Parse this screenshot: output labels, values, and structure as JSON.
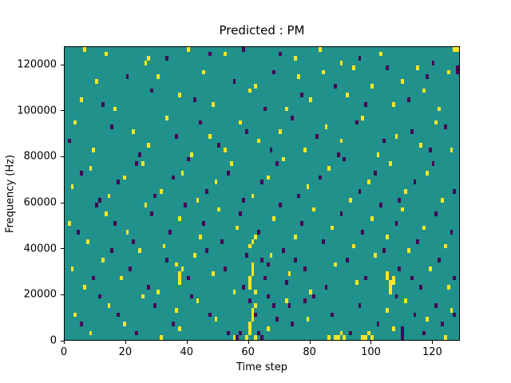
{
  "chart_data": {
    "type": "heatmap",
    "title": "Predicted : PM",
    "xlabel": "Time step",
    "ylabel": "Frequency (Hz)",
    "xlim": [
      0,
      129
    ],
    "ylim": [
      0,
      128000
    ],
    "n_time_steps": 129,
    "n_freq_bins": 64,
    "freq_bin_size_hz": 2000,
    "grid": false,
    "x_ticks": [
      0,
      20,
      40,
      60,
      80,
      100,
      120
    ],
    "y_ticks": [
      0,
      20000,
      40000,
      60000,
      80000,
      100000,
      120000
    ],
    "colors": {
      "background": "#21918c",
      "min": "#440154",
      "max": "#fde725"
    },
    "cell_format": "[time_step, freq_bin]",
    "cells_max": [
      [
        6,
        63
      ],
      [
        13,
        62
      ],
      [
        26,
        60
      ],
      [
        27,
        61
      ],
      [
        40,
        63
      ],
      [
        52,
        62
      ],
      [
        75,
        61
      ],
      [
        83,
        63
      ],
      [
        90,
        60
      ],
      [
        103,
        62
      ],
      [
        115,
        59
      ],
      [
        127,
        63
      ],
      [
        128,
        63
      ],
      [
        10,
        56
      ],
      [
        30,
        57
      ],
      [
        45,
        58
      ],
      [
        62,
        55
      ],
      [
        76,
        57
      ],
      [
        84,
        58
      ],
      [
        100,
        55
      ],
      [
        110,
        56
      ],
      [
        125,
        58
      ],
      [
        94,
        59
      ],
      [
        5,
        52
      ],
      [
        16,
        50
      ],
      [
        37,
        53
      ],
      [
        48,
        51
      ],
      [
        60,
        54
      ],
      [
        72,
        50
      ],
      [
        80,
        52
      ],
      [
        92,
        53
      ],
      [
        107,
        51
      ],
      [
        117,
        54
      ],
      [
        122,
        50
      ],
      [
        3,
        47
      ],
      [
        9,
        41
      ],
      [
        22,
        45
      ],
      [
        27,
        42
      ],
      [
        33,
        48
      ],
      [
        41,
        40
      ],
      [
        47,
        44
      ],
      [
        52,
        41
      ],
      [
        57,
        47
      ],
      [
        63,
        43
      ],
      [
        70,
        45
      ],
      [
        78,
        41
      ],
      [
        85,
        46
      ],
      [
        90,
        43
      ],
      [
        97,
        48
      ],
      [
        102,
        40
      ],
      [
        108,
        44
      ],
      [
        116,
        42
      ],
      [
        121,
        47
      ],
      [
        126,
        41
      ],
      [
        2,
        33
      ],
      [
        8,
        37
      ],
      [
        14,
        31
      ],
      [
        19,
        35
      ],
      [
        25,
        38
      ],
      [
        31,
        32
      ],
      [
        38,
        36
      ],
      [
        43,
        30
      ],
      [
        49,
        34
      ],
      [
        54,
        38
      ],
      [
        61,
        31
      ],
      [
        66,
        35
      ],
      [
        71,
        39
      ],
      [
        79,
        33
      ],
      [
        86,
        37
      ],
      [
        93,
        30
      ],
      [
        99,
        34
      ],
      [
        106,
        38
      ],
      [
        111,
        32
      ],
      [
        118,
        36
      ],
      [
        123,
        30
      ],
      [
        1,
        25
      ],
      [
        7,
        21
      ],
      [
        13,
        27
      ],
      [
        20,
        23
      ],
      [
        26,
        29
      ],
      [
        32,
        20
      ],
      [
        37,
        26
      ],
      [
        44,
        22
      ],
      [
        50,
        28
      ],
      [
        56,
        24
      ],
      [
        60,
        20
      ],
      [
        61,
        21
      ],
      [
        62,
        22
      ],
      [
        68,
        26
      ],
      [
        75,
        22
      ],
      [
        81,
        28
      ],
      [
        87,
        24
      ],
      [
        94,
        20
      ],
      [
        100,
        26
      ],
      [
        105,
        22
      ],
      [
        110,
        28
      ],
      [
        117,
        24
      ],
      [
        124,
        20
      ],
      [
        2,
        15
      ],
      [
        6,
        11
      ],
      [
        12,
        17
      ],
      [
        18,
        13
      ],
      [
        24,
        19
      ],
      [
        30,
        10
      ],
      [
        36,
        16
      ],
      [
        37,
        12
      ],
      [
        37,
        13
      ],
      [
        37,
        14
      ],
      [
        38,
        15
      ],
      [
        42,
        18
      ],
      [
        48,
        14
      ],
      [
        55,
        10
      ],
      [
        60,
        11
      ],
      [
        60,
        12
      ],
      [
        60,
        13
      ],
      [
        61,
        14
      ],
      [
        61,
        15
      ],
      [
        61,
        16
      ],
      [
        62,
        10
      ],
      [
        67,
        18
      ],
      [
        73,
        14
      ],
      [
        80,
        10
      ],
      [
        88,
        16
      ],
      [
        95,
        12
      ],
      [
        101,
        18
      ],
      [
        105,
        13
      ],
      [
        105,
        14
      ],
      [
        106,
        10
      ],
      [
        106,
        11
      ],
      [
        106,
        12
      ],
      [
        107,
        12
      ],
      [
        107,
        13
      ],
      [
        112,
        19
      ],
      [
        119,
        15
      ],
      [
        125,
        11
      ],
      [
        3,
        5
      ],
      [
        8,
        1
      ],
      [
        14,
        7
      ],
      [
        19,
        3
      ],
      [
        25,
        9
      ],
      [
        31,
        0
      ],
      [
        36,
        6
      ],
      [
        37,
        2
      ],
      [
        43,
        8
      ],
      [
        49,
        4
      ],
      [
        55,
        0
      ],
      [
        59,
        0
      ],
      [
        60,
        1
      ],
      [
        60,
        2
      ],
      [
        60,
        3
      ],
      [
        61,
        4
      ],
      [
        61,
        5
      ],
      [
        61,
        6
      ],
      [
        62,
        0
      ],
      [
        62,
        7
      ],
      [
        66,
        2
      ],
      [
        72,
        8
      ],
      [
        79,
        4
      ],
      [
        86,
        0
      ],
      [
        88,
        0
      ],
      [
        89,
        0
      ],
      [
        90,
        1
      ],
      [
        91,
        0
      ],
      [
        97,
        0
      ],
      [
        98,
        0
      ],
      [
        99,
        1
      ],
      [
        100,
        0
      ],
      [
        105,
        6
      ],
      [
        107,
        2
      ],
      [
        111,
        8
      ],
      [
        118,
        4
      ],
      [
        124,
        0
      ],
      [
        126,
        6
      ]
    ],
    "cells_min": [
      [
        33,
        61
      ],
      [
        47,
        62
      ],
      [
        58,
        63
      ],
      [
        70,
        62
      ],
      [
        96,
        61
      ],
      [
        120,
        60
      ],
      [
        128,
        59
      ],
      [
        128,
        58
      ],
      [
        20,
        57
      ],
      [
        55,
        56
      ],
      [
        68,
        58
      ],
      [
        88,
        55
      ],
      [
        105,
        59
      ],
      [
        118,
        57
      ],
      [
        12,
        51
      ],
      [
        28,
        54
      ],
      [
        42,
        52
      ],
      [
        65,
        50
      ],
      [
        77,
        53
      ],
      [
        98,
        51
      ],
      [
        112,
        52
      ],
      [
        1,
        43
      ],
      [
        15,
        46
      ],
      [
        24,
        40
      ],
      [
        36,
        44
      ],
      [
        44,
        47
      ],
      [
        50,
        42
      ],
      [
        59,
        45
      ],
      [
        67,
        41
      ],
      [
        74,
        48
      ],
      [
        82,
        44
      ],
      [
        89,
        40
      ],
      [
        95,
        47
      ],
      [
        104,
        43
      ],
      [
        113,
        45
      ],
      [
        119,
        41
      ],
      [
        124,
        46
      ],
      [
        5,
        36
      ],
      [
        11,
        30
      ],
      [
        17,
        34
      ],
      [
        23,
        38
      ],
      [
        29,
        31
      ],
      [
        35,
        35
      ],
      [
        40,
        39
      ],
      [
        46,
        32
      ],
      [
        53,
        36
      ],
      [
        58,
        30
      ],
      [
        64,
        34
      ],
      [
        69,
        38
      ],
      [
        76,
        31
      ],
      [
        83,
        35
      ],
      [
        91,
        39
      ],
      [
        96,
        32
      ],
      [
        101,
        36
      ],
      [
        109,
        30
      ],
      [
        114,
        34
      ],
      [
        120,
        38
      ],
      [
        127,
        32
      ],
      [
        4,
        23
      ],
      [
        10,
        29
      ],
      [
        16,
        25
      ],
      [
        22,
        21
      ],
      [
        28,
        27
      ],
      [
        34,
        23
      ],
      [
        39,
        29
      ],
      [
        45,
        25
      ],
      [
        51,
        21
      ],
      [
        57,
        27
      ],
      [
        63,
        23
      ],
      [
        70,
        29
      ],
      [
        77,
        25
      ],
      [
        84,
        21
      ],
      [
        90,
        27
      ],
      [
        97,
        23
      ],
      [
        103,
        29
      ],
      [
        108,
        25
      ],
      [
        115,
        21
      ],
      [
        121,
        27
      ],
      [
        126,
        23
      ],
      [
        9,
        13
      ],
      [
        15,
        19
      ],
      [
        21,
        15
      ],
      [
        27,
        11
      ],
      [
        33,
        17
      ],
      [
        40,
        13
      ],
      [
        46,
        19
      ],
      [
        52,
        15
      ],
      [
        58,
        11
      ],
      [
        59,
        18
      ],
      [
        64,
        17
      ],
      [
        65,
        13
      ],
      [
        66,
        16
      ],
      [
        71,
        19
      ],
      [
        72,
        12
      ],
      [
        75,
        17
      ],
      [
        78,
        15
      ],
      [
        85,
        11
      ],
      [
        92,
        17
      ],
      [
        98,
        13
      ],
      [
        104,
        19
      ],
      [
        109,
        15
      ],
      [
        113,
        13
      ],
      [
        116,
        11
      ],
      [
        122,
        17
      ],
      [
        127,
        13
      ],
      [
        5,
        3
      ],
      [
        11,
        9
      ],
      [
        17,
        5
      ],
      [
        23,
        1
      ],
      [
        29,
        7
      ],
      [
        35,
        3
      ],
      [
        41,
        9
      ],
      [
        47,
        5
      ],
      [
        53,
        1
      ],
      [
        56,
        0
      ],
      [
        57,
        1
      ],
      [
        60,
        8
      ],
      [
        62,
        5
      ],
      [
        63,
        1
      ],
      [
        64,
        0
      ],
      [
        66,
        9
      ],
      [
        68,
        7
      ],
      [
        69,
        4
      ],
      [
        73,
        7
      ],
      [
        74,
        3
      ],
      [
        78,
        8
      ],
      [
        81,
        9
      ],
      [
        87,
        5
      ],
      [
        93,
        1
      ],
      [
        96,
        7
      ],
      [
        102,
        3
      ],
      [
        108,
        9
      ],
      [
        110,
        0
      ],
      [
        110,
        1
      ],
      [
        110,
        2
      ],
      [
        114,
        5
      ],
      [
        117,
        1
      ],
      [
        121,
        7
      ],
      [
        123,
        3
      ],
      [
        127,
        5
      ]
    ]
  }
}
